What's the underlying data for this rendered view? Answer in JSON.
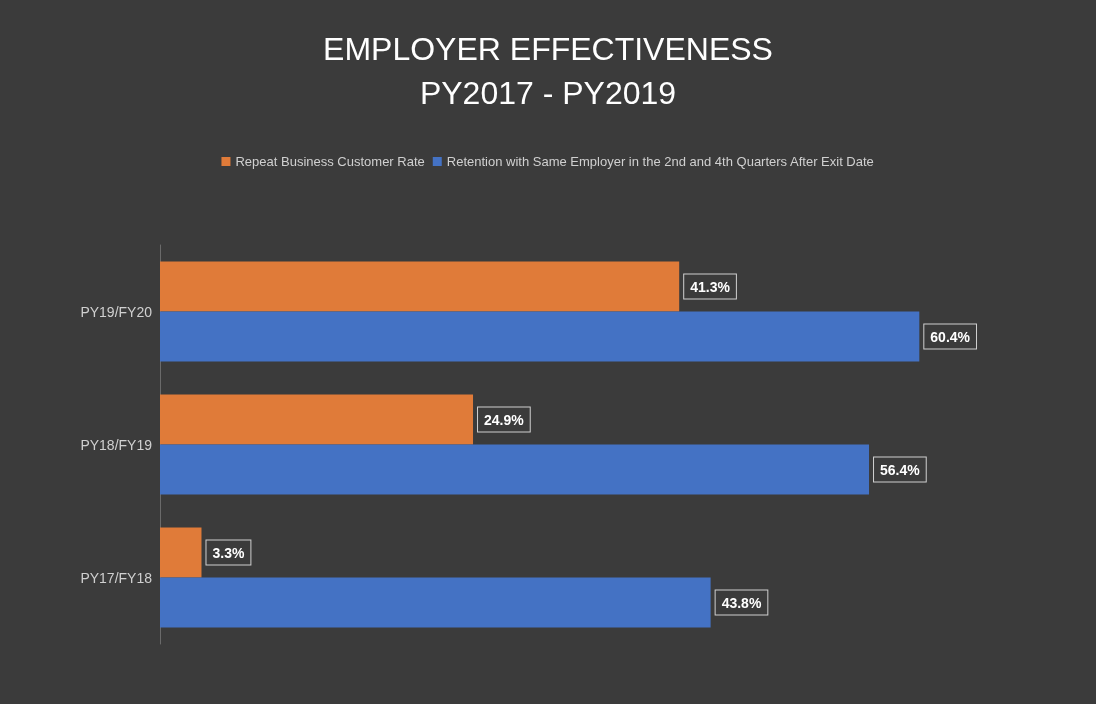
{
  "chart_data": {
    "type": "bar",
    "orientation": "horizontal",
    "title": "EMPLOYER EFFECTIVENESS\nPY2017 - PY2019",
    "categories": [
      "PY19/FY20",
      "PY18/FY19",
      "PY17/FY18"
    ],
    "series": [
      {
        "name": "Repeat Business Customer Rate",
        "color": "#e07b39",
        "values": [
          41.3,
          24.9,
          3.3
        ],
        "value_labels": [
          "41.3%",
          "24.9%",
          "3.3%"
        ]
      },
      {
        "name": "Retention with Same Employer in the 2nd and 4th Quarters After Exit Date",
        "color": "#4472c4",
        "values": [
          60.4,
          56.4,
          43.8
        ],
        "value_labels": [
          "60.4%",
          "56.4%",
          "43.8%"
        ]
      }
    ],
    "legend": "top"
  }
}
